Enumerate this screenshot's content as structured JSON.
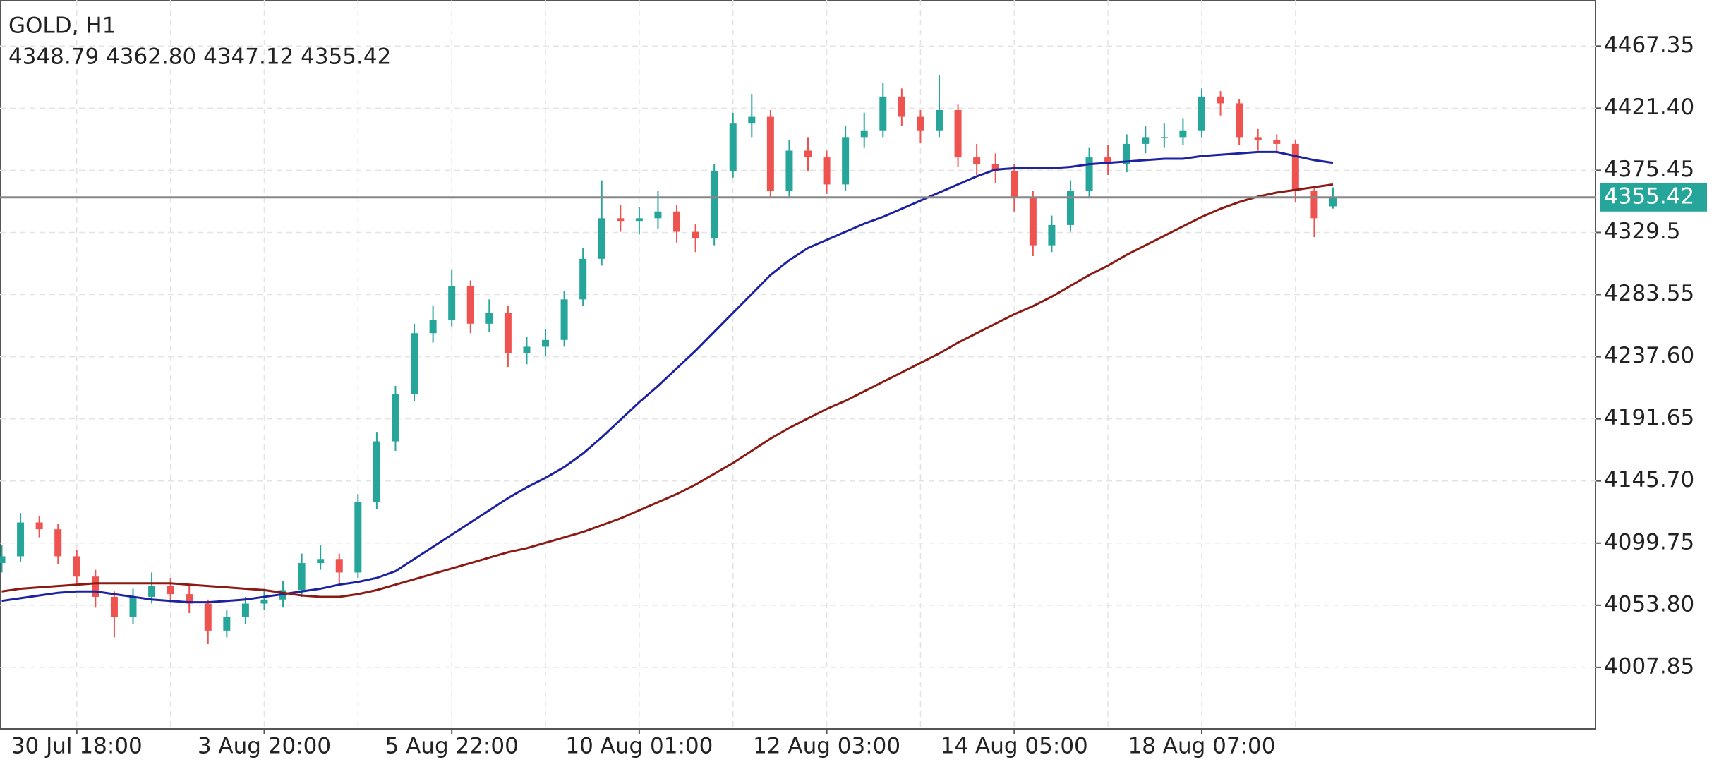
{
  "chart_data": {
    "type": "candlestick",
    "title": "GOLD, H1",
    "subtitle": "4348.79 4362.80 4347.12 4355.42",
    "categories": [
      null,
      null,
      null,
      null,
      "30 Jul 18:00",
      null,
      null,
      null,
      null,
      null,
      null,
      null,
      null,
      null,
      "3 Aug 20:00",
      null,
      null,
      null,
      null,
      null,
      null,
      null,
      null,
      null,
      "5 Aug 22:00",
      null,
      null,
      null,
      null,
      null,
      null,
      null,
      null,
      null,
      "10 Aug 01:00",
      null,
      null,
      null,
      null,
      null,
      null,
      null,
      null,
      null,
      "12 Aug 03:00",
      null,
      null,
      null,
      null,
      null,
      null,
      null,
      null,
      null,
      "14 Aug 05:00",
      null,
      null,
      null,
      null,
      null,
      null,
      null,
      null,
      null,
      "18 Aug 07:00",
      null,
      null,
      null,
      null,
      null,
      null,
      null
    ],
    "open": [
      4085,
      4090,
      4115,
      4110,
      4090,
      4075,
      4060,
      4045,
      4060,
      4068,
      4062,
      4055,
      4035,
      4045,
      4055,
      4058,
      4065,
      4085,
      4088,
      4078,
      4130,
      4175,
      4210,
      4255,
      4265,
      4290,
      4262,
      4270,
      4240,
      4245,
      4250,
      4280,
      4310,
      4340,
      4338,
      4340,
      4345,
      4330,
      4325,
      4375,
      4410,
      4415,
      4360,
      4390,
      4385,
      4365,
      4400,
      4405,
      4430,
      4415,
      4405,
      4420,
      4385,
      4380,
      4375,
      4355,
      4320,
      4335,
      4360,
      4385,
      4380,
      4395,
      4400,
      4400,
      4405,
      4430,
      4425,
      4400,
      4398,
      4395,
      4360,
      4348.79
    ],
    "high": [
      4098,
      4122,
      4120,
      4114,
      4095,
      4080,
      4064,
      4066,
      4078,
      4074,
      4068,
      4058,
      4050,
      4060,
      4066,
      4072,
      4092,
      4098,
      4092,
      4136,
      4182,
      4216,
      4262,
      4275,
      4302,
      4294,
      4280,
      4275,
      4252,
      4258,
      4286,
      4318,
      4368,
      4350,
      4348,
      4360,
      4350,
      4336,
      4380,
      4418,
      4432,
      4420,
      4398,
      4400,
      4390,
      4408,
      4418,
      4440,
      4436,
      4420,
      4446,
      4424,
      4395,
      4388,
      4380,
      4360,
      4342,
      4368,
      4392,
      4394,
      4402,
      4408,
      4410,
      4414,
      4436,
      4434,
      4428,
      4406,
      4402,
      4398,
      4364,
      4362.8
    ],
    "low": [
      4078,
      4086,
      4104,
      4084,
      4068,
      4052,
      4030,
      4040,
      4055,
      4056,
      4048,
      4025,
      4030,
      4040,
      4050,
      4052,
      4060,
      4080,
      4070,
      4074,
      4125,
      4168,
      4205,
      4248,
      4260,
      4255,
      4256,
      4230,
      4232,
      4238,
      4245,
      4275,
      4305,
      4330,
      4328,
      4332,
      4322,
      4315,
      4320,
      4370,
      4400,
      4355,
      4355,
      4375,
      4358,
      4360,
      4392,
      4400,
      4408,
      4396,
      4400,
      4378,
      4372,
      4366,
      4345,
      4312,
      4315,
      4330,
      4355,
      4372,
      4374,
      4388,
      4392,
      4394,
      4400,
      4416,
      4394,
      4390,
      4388,
      4352,
      4326,
      4347.12
    ],
    "close": [
      4090,
      4115,
      4110,
      4090,
      4075,
      4060,
      4045,
      4060,
      4068,
      4062,
      4055,
      4035,
      4045,
      4055,
      4058,
      4065,
      4085,
      4088,
      4078,
      4130,
      4175,
      4210,
      4255,
      4265,
      4290,
      4262,
      4270,
      4240,
      4245,
      4250,
      4280,
      4310,
      4340,
      4338,
      4340,
      4345,
      4330,
      4325,
      4375,
      4410,
      4415,
      4360,
      4390,
      4385,
      4365,
      4400,
      4405,
      4430,
      4415,
      4405,
      4420,
      4385,
      4380,
      4375,
      4355,
      4320,
      4335,
      4360,
      4385,
      4380,
      4395,
      4400,
      4400,
      4405,
      4430,
      4425,
      4400,
      4398,
      4395,
      4360,
      4340,
      4355.42
    ],
    "up_color": "#26a69a",
    "down_color": "#ef5350",
    "series": [
      {
        "color": "#1c22a0",
        "values": [
          4057,
          4059,
          4061,
          4063,
          4064,
          4064,
          4062,
          4060,
          4058,
          4057,
          4056,
          4056,
          4057,
          4058,
          4060,
          4062,
          4064,
          4066,
          4069,
          4071,
          4074,
          4079,
          4088,
          4097,
          4106,
          4115,
          4124,
          4133,
          4141,
          4148,
          4156,
          4166,
          4178,
          4191,
          4204,
          4216,
          4229,
          4242,
          4256,
          4270,
          4284,
          4298,
          4309,
          4318,
          4324,
          4330,
          4336,
          4341,
          4347,
          4353,
          4359,
          4365,
          4371,
          4376,
          4377,
          4377,
          4377,
          4378,
          4380,
          4381,
          4382,
          4383,
          4384,
          4384,
          4386,
          4387,
          4388,
          4389,
          4389,
          4386,
          4383,
          4381
        ]
      },
      {
        "color": "#8b1a14",
        "values": [
          4064,
          4066,
          4067,
          4068,
          4069,
          4070,
          4070,
          4070,
          4070,
          4070,
          4069,
          4068,
          4067,
          4066,
          4065,
          4063,
          4061,
          4060,
          4060,
          4062,
          4065,
          4069,
          4073,
          4077,
          4081,
          4085,
          4089,
          4093,
          4096,
          4100,
          4104,
          4108,
          4113,
          4118,
          4124,
          4130,
          4136,
          4143,
          4151,
          4159,
          4168,
          4177,
          4185,
          4192,
          4199,
          4205,
          4212,
          4219,
          4226,
          4233,
          4240,
          4248,
          4255,
          4262,
          4269,
          4275,
          4282,
          4290,
          4298,
          4305,
          4313,
          4320,
          4327,
          4334,
          4341,
          4347,
          4352,
          4356,
          4359,
          4361,
          4363,
          4365
        ]
      }
    ],
    "current_price": 4355.42,
    "current_price_color": "#26a69a",
    "ylim": [
      3962.4,
      4501.4
    ],
    "yticks": [
      4007.85,
      {
        "value": 4053.8,
        "label": "4053.80"
      },
      4099.75,
      {
        "value": 4145.7,
        "label": "4145.70"
      },
      4191.65,
      {
        "value": 4237.6,
        "label": "4237.60"
      },
      4283.55,
      4329.5,
      4375.45,
      {
        "value": 4421.4,
        "label": "4421.40"
      },
      4467.35
    ],
    "grid": true
  }
}
